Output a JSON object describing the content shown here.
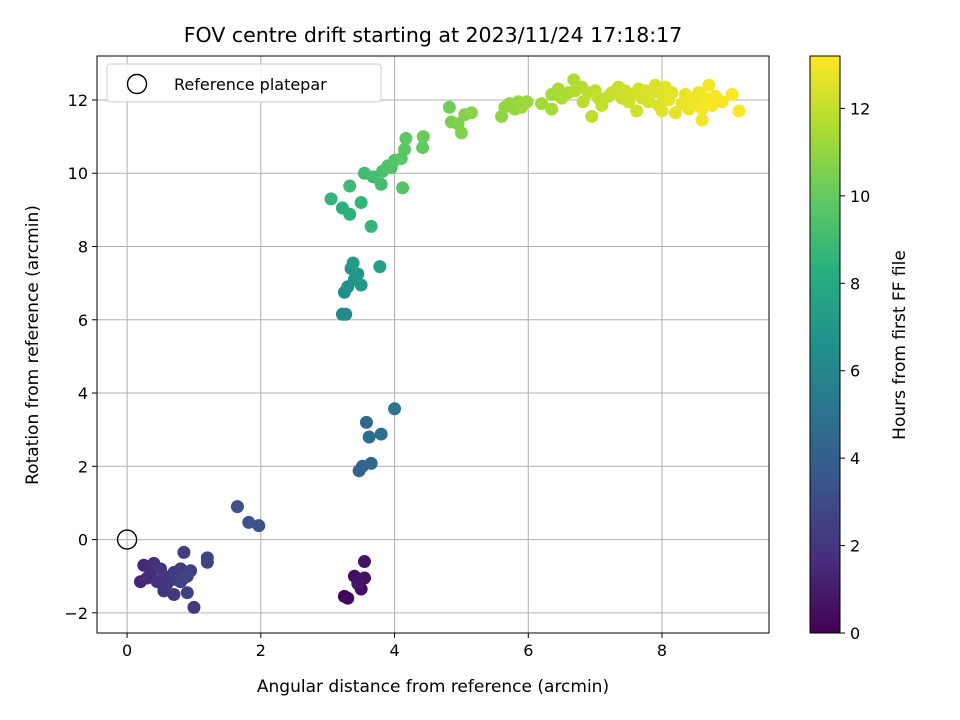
{
  "chart_data": {
    "type": "scatter",
    "title": "FOV centre drift starting at 2023/11/24 17:18:17",
    "xlabel": "Angular distance from reference (arcmin)",
    "ylabel": "Rotation from reference (arcmin)",
    "xlim": [
      -0.45,
      9.6
    ],
    "ylim": [
      -2.55,
      13.2
    ],
    "xticks": [
      0,
      2,
      4,
      6,
      8
    ],
    "yticks": [
      -2,
      0,
      2,
      4,
      6,
      8,
      10,
      12
    ],
    "grid": true,
    "colormap": "viridis",
    "colorbar": {
      "label": "Hours from first FF file",
      "range": [
        0,
        13.2
      ],
      "ticks": [
        0,
        2,
        4,
        6,
        8,
        10,
        12
      ]
    },
    "legend": {
      "placement": "top-left",
      "entries": [
        {
          "label": "Reference platepar",
          "marker": "hollow-circle"
        }
      ]
    },
    "reference_point": [
      0,
      0
    ],
    "points": [
      [
        3.25,
        -1.55,
        0.2
      ],
      [
        3.3,
        -1.6,
        0.3
      ],
      [
        3.5,
        -1.35,
        0.4
      ],
      [
        3.4,
        -1.0,
        0.5
      ],
      [
        3.55,
        -1.05,
        0.6
      ],
      [
        3.55,
        -0.6,
        0.7
      ],
      [
        3.45,
        -1.2,
        0.8
      ],
      [
        0.2,
        -1.15,
        1.4
      ],
      [
        0.25,
        -0.7,
        1.5
      ],
      [
        0.3,
        -1.05,
        1.6
      ],
      [
        0.35,
        -0.95,
        1.7
      ],
      [
        0.4,
        -0.65,
        1.8
      ],
      [
        0.45,
        -1.15,
        1.9
      ],
      [
        0.5,
        -0.8,
        2.0
      ],
      [
        0.55,
        -1.4,
        2.0
      ],
      [
        0.55,
        -1.0,
        2.1
      ],
      [
        0.6,
        -1.2,
        2.1
      ],
      [
        0.7,
        -0.9,
        2.2
      ],
      [
        0.7,
        -1.5,
        2.2
      ],
      [
        0.75,
        -1.1,
        2.3
      ],
      [
        0.8,
        -0.8,
        2.3
      ],
      [
        0.85,
        -0.35,
        2.4
      ],
      [
        0.85,
        -1.05,
        2.4
      ],
      [
        0.9,
        -1.45,
        2.5
      ],
      [
        0.95,
        -0.85,
        2.5
      ],
      [
        1.0,
        -1.85,
        2.2
      ],
      [
        1.2,
        -0.5,
        2.5
      ],
      [
        1.2,
        -0.62,
        2.6
      ],
      [
        0.8,
        -1.15,
        2.6
      ],
      [
        0.9,
        -1.0,
        2.7
      ],
      [
        1.65,
        0.9,
        3.2
      ],
      [
        1.82,
        0.47,
        3.3
      ],
      [
        1.97,
        0.38,
        3.4
      ],
      [
        3.47,
        1.88,
        4.2
      ],
      [
        3.52,
        2.0,
        4.3
      ],
      [
        3.65,
        2.08,
        4.4
      ],
      [
        3.58,
        3.2,
        4.6
      ],
      [
        3.62,
        2.8,
        4.7
      ],
      [
        3.8,
        2.88,
        4.8
      ],
      [
        4.0,
        3.57,
        5.1
      ],
      [
        3.22,
        6.15,
        6.2
      ],
      [
        3.27,
        6.15,
        6.3
      ],
      [
        3.25,
        6.75,
        6.5
      ],
      [
        3.3,
        6.9,
        6.6
      ],
      [
        3.35,
        7.4,
        6.8
      ],
      [
        3.4,
        7.1,
        6.9
      ],
      [
        3.45,
        7.25,
        7.0
      ],
      [
        3.5,
        6.95,
        7.1
      ],
      [
        3.38,
        7.55,
        7.2
      ],
      [
        3.78,
        7.45,
        7.4
      ],
      [
        3.22,
        9.05,
        8.3
      ],
      [
        3.33,
        8.88,
        8.5
      ],
      [
        3.5,
        9.2,
        8.6
      ],
      [
        3.05,
        9.3,
        8.6
      ],
      [
        3.65,
        8.55,
        8.7
      ],
      [
        3.33,
        9.65,
        8.9
      ],
      [
        3.55,
        10.0,
        9.0
      ],
      [
        3.68,
        9.9,
        9.1
      ],
      [
        3.8,
        9.7,
        9.2
      ],
      [
        3.82,
        10.05,
        9.3
      ],
      [
        3.9,
        10.2,
        9.4
      ],
      [
        3.95,
        10.15,
        9.5
      ],
      [
        4.0,
        10.35,
        9.6
      ],
      [
        4.1,
        10.4,
        9.7
      ],
      [
        4.15,
        10.65,
        9.8
      ],
      [
        4.17,
        10.95,
        9.9
      ],
      [
        4.12,
        9.6,
        9.6
      ],
      [
        4.42,
        10.7,
        10.0
      ],
      [
        4.43,
        11.0,
        10.1
      ],
      [
        4.82,
        11.8,
        10.3
      ],
      [
        4.85,
        11.4,
        10.4
      ],
      [
        4.95,
        11.35,
        10.5
      ],
      [
        5.0,
        11.1,
        10.6
      ],
      [
        5.05,
        11.6,
        10.7
      ],
      [
        5.15,
        11.65,
        10.8
      ],
      [
        5.6,
        11.55,
        10.9
      ],
      [
        5.65,
        11.8,
        11.0
      ],
      [
        5.72,
        11.9,
        11.0
      ],
      [
        5.8,
        11.75,
        11.1
      ],
      [
        5.85,
        11.95,
        11.1
      ],
      [
        5.9,
        11.8,
        11.2
      ],
      [
        5.98,
        11.95,
        11.2
      ],
      [
        6.2,
        11.9,
        11.3
      ],
      [
        6.35,
        11.75,
        11.4
      ],
      [
        6.35,
        12.15,
        11.4
      ],
      [
        6.45,
        12.3,
        11.5
      ],
      [
        6.5,
        12.05,
        11.5
      ],
      [
        6.6,
        12.2,
        11.6
      ],
      [
        6.68,
        12.55,
        11.6
      ],
      [
        6.7,
        12.25,
        11.7
      ],
      [
        6.8,
        12.35,
        11.7
      ],
      [
        6.82,
        11.95,
        11.8
      ],
      [
        6.9,
        12.2,
        11.8
      ],
      [
        6.95,
        11.55,
        11.9
      ],
      [
        7.0,
        12.25,
        11.9
      ],
      [
        7.05,
        12.05,
        12.0
      ],
      [
        7.1,
        11.85,
        12.0
      ],
      [
        7.2,
        12.1,
        12.0
      ],
      [
        7.25,
        12.2,
        12.1
      ],
      [
        7.35,
        12.35,
        12.1
      ],
      [
        7.4,
        12.05,
        12.2
      ],
      [
        7.45,
        12.25,
        12.2
      ],
      [
        7.5,
        11.95,
        12.2
      ],
      [
        7.55,
        12.15,
        12.3
      ],
      [
        7.62,
        11.7,
        12.3
      ],
      [
        7.65,
        12.3,
        12.3
      ],
      [
        7.7,
        12.05,
        12.4
      ],
      [
        7.75,
        12.25,
        12.4
      ],
      [
        7.8,
        11.95,
        12.4
      ],
      [
        7.85,
        12.2,
        12.5
      ],
      [
        7.9,
        12.4,
        12.5
      ],
      [
        7.95,
        11.85,
        12.5
      ],
      [
        8.0,
        11.7,
        12.6
      ],
      [
        8.0,
        12.15,
        12.6
      ],
      [
        8.05,
        12.35,
        12.6
      ],
      [
        8.1,
        12.0,
        12.7
      ],
      [
        8.15,
        12.2,
        12.7
      ],
      [
        8.2,
        11.65,
        12.7
      ],
      [
        8.3,
        11.9,
        12.8
      ],
      [
        8.35,
        12.15,
        12.8
      ],
      [
        8.4,
        11.75,
        12.8
      ],
      [
        8.45,
        12.05,
        12.9
      ],
      [
        8.5,
        11.9,
        12.9
      ],
      [
        8.55,
        12.2,
        12.9
      ],
      [
        8.6,
        11.45,
        13.0
      ],
      [
        8.6,
        11.75,
        13.0
      ],
      [
        8.65,
        12.05,
        13.0
      ],
      [
        8.7,
        12.4,
        13.0
      ],
      [
        8.75,
        11.85,
        13.1
      ],
      [
        8.8,
        12.1,
        13.1
      ],
      [
        8.9,
        11.95,
        13.1
      ],
      [
        9.05,
        12.15,
        13.2
      ],
      [
        9.15,
        11.7,
        13.2
      ]
    ]
  }
}
